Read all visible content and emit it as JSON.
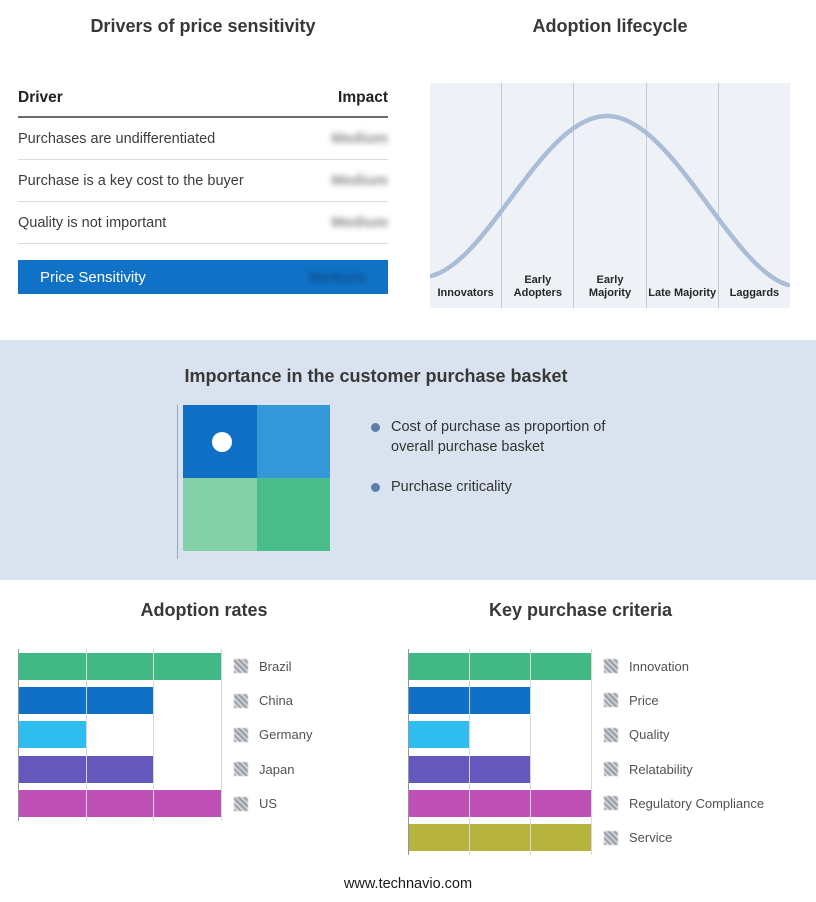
{
  "meta": {
    "footer": "www.technavio.com"
  },
  "drivers_table": {
    "title": "Drivers of price sensitivity",
    "columns": {
      "driver": "Driver",
      "impact": "Impact"
    },
    "rows": [
      {
        "driver": "Purchases are undifferentiated",
        "impact": "Medium"
      },
      {
        "driver": "Purchase is a key cost to the buyer",
        "impact": "Medium"
      },
      {
        "driver": "Quality is not important",
        "impact": "Medium"
      }
    ],
    "summary": {
      "label": "Price Sensitivity",
      "impact": "Medium",
      "bar_color": "#1072c6"
    }
  },
  "adoption_lifecycle": {
    "title": "Adoption lifecycle",
    "stages": [
      "Innovators",
      "Early Adopters",
      "Early Majority",
      "Late Majority",
      "Laggards"
    ],
    "curve_color": "#a9bdd6"
  },
  "purchase_basket": {
    "title": "Importance in the customer purchase basket",
    "bullets": [
      "Cost of purchase as proportion of overall purchase basket",
      "Purchase criticality"
    ],
    "quadrant_colors": [
      "#0f70c6",
      "#3397da",
      "#84d0a8",
      "#4abd8d"
    ],
    "band_color": "#d9e3ef"
  },
  "chart_data": [
    {
      "type": "bar",
      "orientation": "horizontal",
      "title": "Adoption rates",
      "categories": [
        "Brazil",
        "China",
        "Germany",
        "Japan",
        "US"
      ],
      "values": [
        3,
        2,
        1,
        2,
        3
      ],
      "colors": [
        "#41b985",
        "#0f70c6",
        "#2fbdf0",
        "#6558bd",
        "#bf50b6"
      ],
      "xlim": [
        0,
        3
      ],
      "gridlines": true,
      "legend_position": "right"
    },
    {
      "type": "bar",
      "orientation": "horizontal",
      "title": "Key purchase criteria",
      "categories": [
        "Innovation",
        "Price",
        "Quality",
        "Relatability",
        "Regulatory Compliance",
        "Service"
      ],
      "values": [
        3,
        2,
        1,
        2,
        3,
        3
      ],
      "colors": [
        "#41b985",
        "#0f70c6",
        "#2fbdf0",
        "#6558bd",
        "#bf50b6",
        "#b6b33e"
      ],
      "xlim": [
        0,
        3
      ],
      "gridlines": true,
      "legend_position": "right"
    }
  ]
}
